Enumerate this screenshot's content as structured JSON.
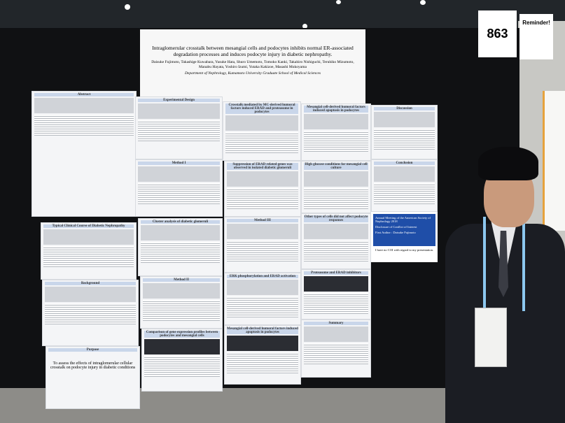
{
  "booth": {
    "number": "863",
    "reminder": "Reminder!"
  },
  "poster": {
    "title": "Intraglomerular crosstalk between mesangial cells and podocytes inhibits normal ER-associated degradation processes and induces podocyte injury in diabetic nephropathy.",
    "authors": "Daisuke Fujimoto, Takashige Kuwabara, Yusuke Hata, Shuro Umemoto, Tomoko Kanki, Takahiro Nishiguchi, Teruhiko Mizumoto, Manabu Hayata, Yoshiro Izumi, Yutaka Kakizoe, Masashi Mukoyama",
    "department": "Department of Nephrology, Kumamoto University Graduate School of Medical Sciences",
    "panels": [
      "Abstract",
      "Typical Clinical Course of Diabetic Nephropathy",
      "Background",
      "Purpose",
      "Experimental Design",
      "Method I",
      "Cluster analysis of diabetic glomeruli",
      "Method II",
      "Comparison of gene expression profiles between podocytes and mesangial cells",
      "Crosstalk mediated by MC-derived humoral factors induced ERAD and proteasome in podocytes",
      "Suppression of ERAD related genes was observed in isolated diabetic glomeruli",
      "Method III",
      "ERK phosphorylation and ERAD activation",
      "Mesangial cell-derived humoral factors induced apoptosis in podocytes",
      "Mesangial cell-derived humoral factors induced apoptosis in podocytes",
      "High glucose conditions for mesangial cell culture",
      "Other types of cells did not affect podocyte responses",
      "Proteasome and ERAD inhibitors",
      "Summary",
      "Discussion",
      "Conclusion"
    ],
    "purpose_text": "To assess the effects of intraglomerular cellular crosstalk on podocyte injury in diabetic conditions",
    "coi": {
      "meeting": "Annual Meeting of the American Society of Nephrology 2018",
      "heading": "Disclosure of Conflict of Interest",
      "author": "First Author : Daisuke Fujimoto",
      "statement": "I have no COI with regard to my presentation."
    }
  }
}
